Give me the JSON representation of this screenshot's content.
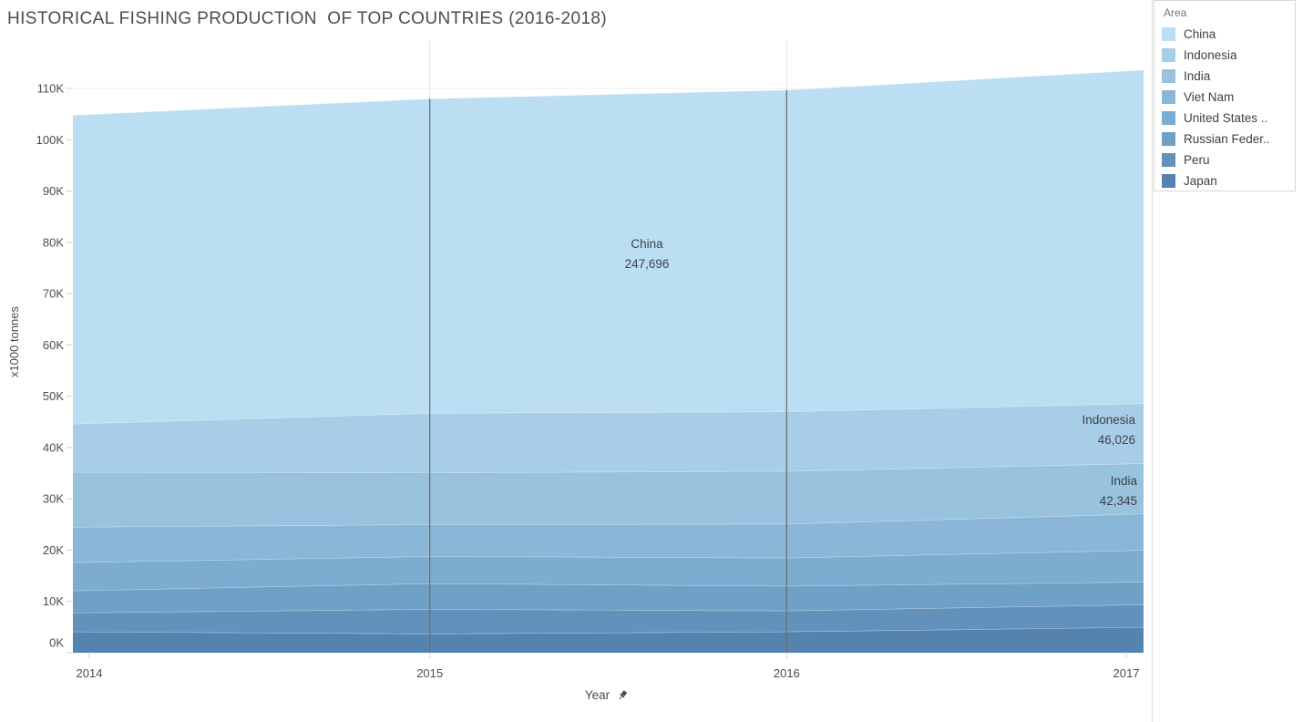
{
  "title": "HISTORICAL FISHING PRODUCTION  OF TOP COUNTRIES (2016-2018)",
  "y_axis": {
    "label": "x1000 tonnes",
    "ticks": [
      "0K",
      "10K",
      "20K",
      "30K",
      "40K",
      "50K",
      "60K",
      "70K",
      "80K",
      "90K",
      "100K",
      "110K"
    ]
  },
  "x_axis": {
    "label": "Year",
    "pin_icon": "pushpin-icon",
    "ticks": [
      "2014",
      "2015",
      "2016",
      "2017"
    ]
  },
  "legend": {
    "title": "Area",
    "items": [
      {
        "label": "China",
        "color": "#bcdef2"
      },
      {
        "label": "Indonesia",
        "color": "#a7cee6"
      },
      {
        "label": "India",
        "color": "#98c2de"
      },
      {
        "label": "Viet Nam",
        "color": "#8ab6d7"
      },
      {
        "label": "United States ..",
        "color": "#7caccf"
      },
      {
        "label": "Russian Feder..",
        "color": "#6fa0c6"
      },
      {
        "label": "Peru",
        "color": "#6292bc"
      },
      {
        "label": "Japan",
        "color": "#5383ae"
      }
    ]
  },
  "annotations": [
    {
      "label": "China",
      "value": "247,696"
    },
    {
      "label": "Indonesia",
      "value": "46,026"
    },
    {
      "label": "India",
      "value": "42,345"
    }
  ],
  "chart_data": {
    "type": "area",
    "stacked": true,
    "title": "HISTORICAL FISHING PRODUCTION  OF TOP COUNTRIES (2016-2018)",
    "xlabel": "Year",
    "ylabel": "x1000 tonnes",
    "x": [
      2014,
      2015,
      2016,
      2017
    ],
    "ylim": [
      0,
      119
    ],
    "grid": true,
    "legend_position": "top-right",
    "units": "x1000 tonnes",
    "note": "Series values estimated from pixel positions; listed top-to-bottom as drawn (China is the top band). Stacking bottom-to-top: Japan, Peru, Russian Feder.., United States .., Viet Nam, India, Indonesia, China.",
    "reference_lines_x": [
      2015,
      2016
    ],
    "series": [
      {
        "name": "China",
        "color": "#bcdef2",
        "values": [
          60.2,
          61.3,
          62.7,
          65.0
        ]
      },
      {
        "name": "Indonesia",
        "color": "#a7cee6",
        "values": [
          9.4,
          11.6,
          11.6,
          11.7
        ]
      },
      {
        "name": "India",
        "color": "#98c2de",
        "values": [
          10.7,
          10.1,
          10.3,
          9.8
        ]
      },
      {
        "name": "Viet Nam",
        "color": "#8ab6d7",
        "values": [
          6.9,
          6.2,
          6.6,
          7.1
        ]
      },
      {
        "name": "United States ..",
        "color": "#7caccf",
        "values": [
          5.5,
          5.3,
          5.5,
          6.2
        ]
      },
      {
        "name": "Russian Feder..",
        "color": "#6fa0c6",
        "values": [
          4.3,
          5.0,
          4.8,
          4.4
        ]
      },
      {
        "name": "Peru",
        "color": "#6292bc",
        "values": [
          3.7,
          4.8,
          4.1,
          4.4
        ]
      },
      {
        "name": "Japan",
        "color": "#5383ae",
        "values": [
          4.1,
          3.7,
          4.1,
          5.0
        ]
      }
    ],
    "annotated_totals": [
      {
        "series": "China",
        "value": 247696
      },
      {
        "series": "Indonesia",
        "value": 46026
      },
      {
        "series": "India",
        "value": 42345
      }
    ]
  }
}
